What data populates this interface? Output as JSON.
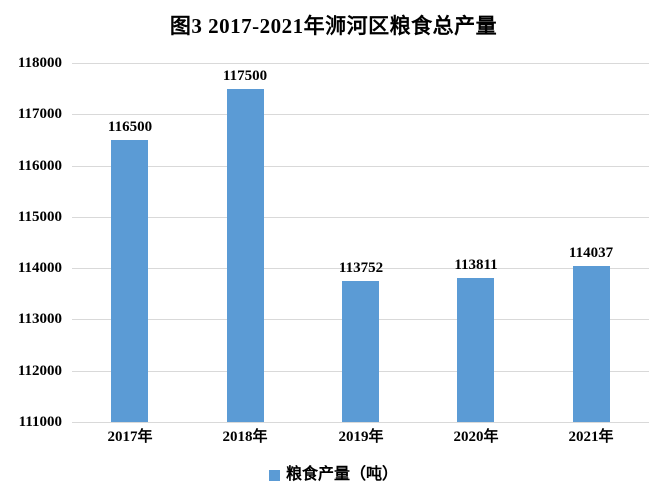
{
  "title": "图3 2017-2021年浉河区粮食总产量",
  "legend": {
    "label": "粮食产量（吨）"
  },
  "colors": {
    "bar": "#5b9bd5",
    "gridline": "#d9d9d9",
    "text": "#000000",
    "background": "#ffffff"
  },
  "chart_data": {
    "type": "bar",
    "title": "图3 2017-2021年浉河区粮食总产量",
    "categories": [
      "2017年",
      "2018年",
      "2019年",
      "2020年",
      "2021年"
    ],
    "values": [
      116500,
      117500,
      113752,
      113811,
      114037
    ],
    "series_name": "粮食产量（吨）",
    "xlabel": "",
    "ylabel": "",
    "ylim": [
      111000,
      118000
    ],
    "yticks": [
      111000,
      112000,
      113000,
      114000,
      115000,
      116000,
      117000,
      118000
    ],
    "data_labels": [
      116500,
      117500,
      113752,
      113811,
      114037
    ],
    "grid": true,
    "legend_position": "bottom"
  }
}
